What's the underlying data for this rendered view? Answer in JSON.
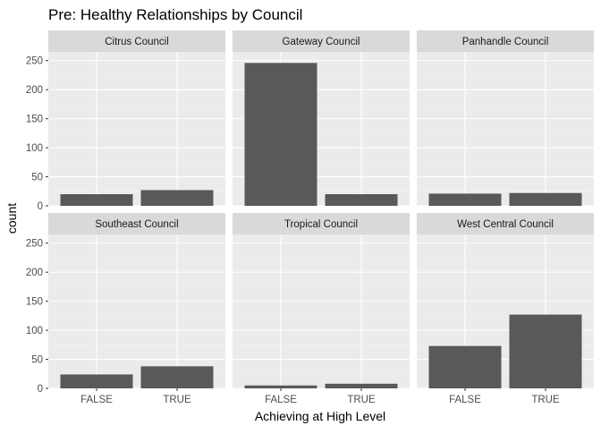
{
  "chart_data": {
    "type": "bar",
    "title": "Pre: Healthy Relationships by Council",
    "xlabel": "Achieving at High Level",
    "ylabel": "count",
    "categories": [
      "FALSE",
      "TRUE"
    ],
    "ylim": [
      0,
      265
    ],
    "yticks": [
      0,
      50,
      100,
      150,
      200,
      250
    ],
    "grid": true,
    "facets": [
      {
        "name": "Citrus Council",
        "values": [
          20,
          27
        ]
      },
      {
        "name": "Gateway Council",
        "values": [
          246,
          20
        ]
      },
      {
        "name": "Panhandle Council",
        "values": [
          21,
          22
        ]
      },
      {
        "name": "Southeast Council",
        "values": [
          24,
          38
        ]
      },
      {
        "name": "Tropical Council",
        "values": [
          5,
          8
        ]
      },
      {
        "name": "West Central Council",
        "values": [
          73,
          127
        ]
      }
    ]
  }
}
